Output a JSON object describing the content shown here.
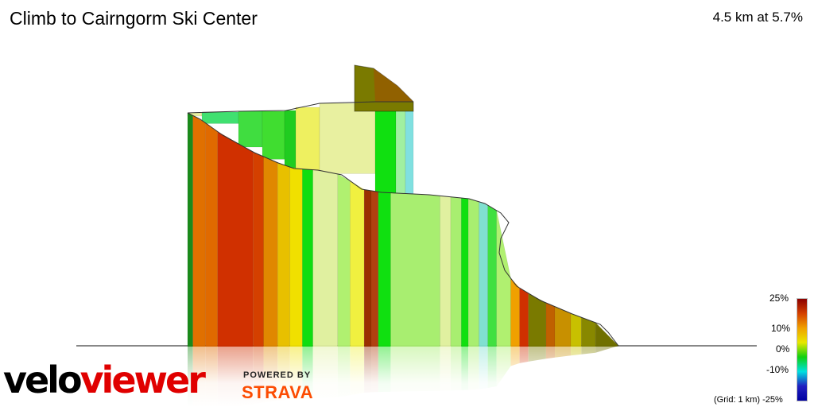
{
  "title": "Climb to Cairngorm Ski Center",
  "summary": "4.5 km at 5.7%",
  "brand": {
    "velo": "velo",
    "viewer": "viewer",
    "powered_by": "POWERED BY",
    "strava": "STRAVA"
  },
  "legend": {
    "max_label": "25%",
    "p10_label": "10%",
    "zero_label": "0%",
    "m10_label": "-10%",
    "min_label": "-25%",
    "grid_note": "(Grid: 1 km)",
    "colors": [
      "#8b0000",
      "#d44000",
      "#f0a000",
      "#e8e800",
      "#10d010",
      "#00e0e0",
      "#2020c0",
      "#0000a0"
    ]
  },
  "chart_data": {
    "type": "3d-elevation-profile",
    "title": "Climb to Cairngorm Ski Center",
    "distance_km": 4.5,
    "average_gradient_pct": 5.7,
    "gradient_scale_pct": [
      -25,
      25
    ],
    "segments": [
      {
        "gradient_pct": 1,
        "color": "#1a8a1a"
      },
      {
        "gradient_pct": 14,
        "color": "#e07000"
      },
      {
        "gradient_pct": 13,
        "color": "#e06a00"
      },
      {
        "gradient_pct": 19,
        "color": "#d03000"
      },
      {
        "gradient_pct": 18,
        "color": "#d44000"
      },
      {
        "gradient_pct": 12,
        "color": "#e08800"
      },
      {
        "gradient_pct": 10,
        "color": "#e8c000"
      },
      {
        "gradient_pct": 8,
        "color": "#f0e000"
      },
      {
        "gradient_pct": 0,
        "color": "#10dd10"
      },
      {
        "gradient_pct": 4,
        "color": "#e0f0a0"
      },
      {
        "gradient_pct": 3,
        "color": "#b0f070"
      },
      {
        "gradient_pct": 7,
        "color": "#f0f040"
      },
      {
        "gradient_pct": 20,
        "color": "#9a3000"
      },
      {
        "gradient_pct": 16,
        "color": "#b04010"
      },
      {
        "gradient_pct": 1,
        "color": "#10e010"
      },
      {
        "gradient_pct": 2,
        "color": "#a8ee70"
      },
      {
        "gradient_pct": 3,
        "color": "#e0f0a0"
      },
      {
        "gradient_pct": 2,
        "color": "#a8ee70"
      },
      {
        "gradient_pct": 0,
        "color": "#10e010"
      },
      {
        "gradient_pct": 2,
        "color": "#a8ee70"
      },
      {
        "gradient_pct": -3,
        "color": "#80e0d0"
      },
      {
        "gradient_pct": 1,
        "color": "#40e040"
      },
      {
        "gradient_pct": 3,
        "color": "#b0f070"
      },
      {
        "gradient_pct": 12,
        "color": "#f0a000"
      },
      {
        "gradient_pct": 19,
        "color": "#d03000"
      },
      {
        "gradient_pct": 17,
        "color": "#7a7a00"
      },
      {
        "gradient_pct": 15,
        "color": "#c06000"
      },
      {
        "gradient_pct": 11,
        "color": "#c89000"
      },
      {
        "gradient_pct": 9,
        "color": "#c8c000"
      },
      {
        "gradient_pct": 6,
        "color": "#888800"
      },
      {
        "gradient_pct": 4,
        "color": "#707000"
      }
    ]
  }
}
